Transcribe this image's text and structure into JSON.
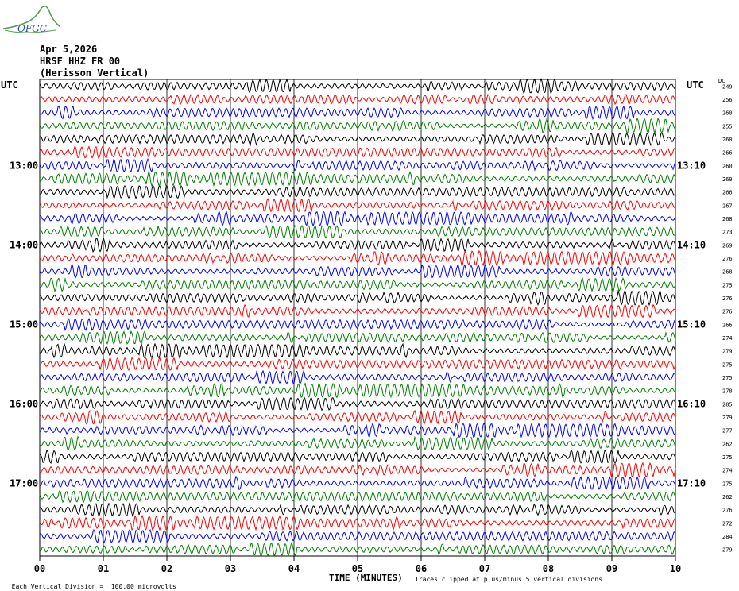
{
  "header": {
    "logo_text": "OFGC",
    "date": "Apr 5,2026",
    "station": "HRSF HHZ FR 00",
    "station_name": "(Herisson Vertical)"
  },
  "chart_data": {
    "type": "line",
    "title": "",
    "xlabel": "TIME (MINUTES)",
    "xlim": [
      0,
      10
    ],
    "x_ticks": [
      "00",
      "01",
      "02",
      "03",
      "04",
      "05",
      "06",
      "07",
      "08",
      "09",
      "10"
    ],
    "left_axis_label": "UTC",
    "right_axis_label": "UTC",
    "dc_label": "DC",
    "hour_labels_left": [
      "13:00",
      "14:00",
      "15:00",
      "16:00",
      "17:00"
    ],
    "hour_labels_right": [
      "13:10",
      "14:10",
      "15:10",
      "16:10",
      "17:10"
    ],
    "trace_colors": [
      "#000000",
      "#ff0000",
      "#0000ff",
      "#008000"
    ],
    "dc_offsets": [
      "249",
      "256",
      "260",
      "255",
      "260",
      "266",
      "260",
      "269",
      "266",
      "267",
      "268",
      "273",
      "269",
      "276",
      "268",
      "275",
      "276",
      "276",
      "266",
      "274",
      "279",
      "275",
      "275",
      "278",
      "285",
      "279",
      "277",
      "262",
      "275",
      "274",
      "275",
      "262",
      "276",
      "272",
      "284",
      "279"
    ],
    "footer_left": "Each Vertical Division =  100.00 microvolts",
    "footer_right": "Traces clipped at plus/minus 5 vertical divisions"
  }
}
